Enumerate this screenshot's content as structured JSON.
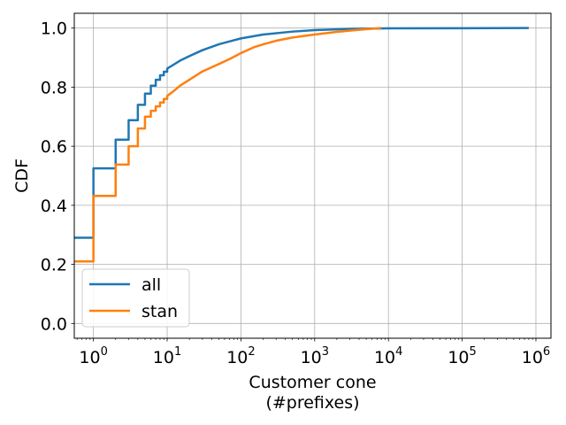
{
  "chart_data": {
    "type": "line",
    "xlabel_lines": [
      "Customer cone",
      "(#prefixes)"
    ],
    "ylabel": "CDF",
    "xscale": "log",
    "xlim": [
      0.55,
      1600000
    ],
    "ylim": [
      -0.05,
      1.05
    ],
    "grid": true,
    "legend_position": "lower-left",
    "x_ticks": [
      {
        "base": "10",
        "exp": "0",
        "value": 1
      },
      {
        "base": "10",
        "exp": "1",
        "value": 10
      },
      {
        "base": "10",
        "exp": "2",
        "value": 100
      },
      {
        "base": "10",
        "exp": "3",
        "value": 1000
      },
      {
        "base": "10",
        "exp": "4",
        "value": 10000
      },
      {
        "base": "10",
        "exp": "5",
        "value": 100000
      },
      {
        "base": "10",
        "exp": "6",
        "value": 1000000
      }
    ],
    "y_ticks": [
      {
        "label": "0.0",
        "value": 0.0
      },
      {
        "label": "0.2",
        "value": 0.2
      },
      {
        "label": "0.4",
        "value": 0.4
      },
      {
        "label": "0.6",
        "value": 0.6
      },
      {
        "label": "0.8",
        "value": 0.8
      },
      {
        "label": "1.0",
        "value": 1.0
      }
    ],
    "series": [
      {
        "name": "all",
        "color": "#1f77b4",
        "points": [
          [
            0.55,
            0.29
          ],
          [
            1,
            0.29
          ],
          [
            1,
            0.525
          ],
          [
            2,
            0.525
          ],
          [
            2,
            0.622
          ],
          [
            3,
            0.622
          ],
          [
            3,
            0.688
          ],
          [
            4,
            0.688
          ],
          [
            4,
            0.74
          ],
          [
            5,
            0.74
          ],
          [
            5,
            0.778
          ],
          [
            6,
            0.778
          ],
          [
            6,
            0.805
          ],
          [
            7,
            0.805
          ],
          [
            7,
            0.825
          ],
          [
            8,
            0.825
          ],
          [
            8,
            0.84
          ],
          [
            9,
            0.84
          ],
          [
            9,
            0.852
          ],
          [
            10,
            0.852
          ],
          [
            10,
            0.863
          ],
          [
            12,
            0.875
          ],
          [
            15,
            0.89
          ],
          [
            20,
            0.905
          ],
          [
            30,
            0.925
          ],
          [
            50,
            0.945
          ],
          [
            100,
            0.965
          ],
          [
            200,
            0.978
          ],
          [
            500,
            0.988
          ],
          [
            1000,
            0.993
          ],
          [
            3000,
            0.997
          ],
          [
            10000,
            0.999
          ],
          [
            100000,
            0.9995
          ],
          [
            800000,
            1.0
          ]
        ]
      },
      {
        "name": "stan",
        "color": "#ff7f0e",
        "points": [
          [
            0.55,
            0.21
          ],
          [
            1,
            0.21
          ],
          [
            1,
            0.432
          ],
          [
            2,
            0.432
          ],
          [
            2,
            0.538
          ],
          [
            3,
            0.538
          ],
          [
            3,
            0.6
          ],
          [
            4,
            0.6
          ],
          [
            4,
            0.66
          ],
          [
            5,
            0.66
          ],
          [
            5,
            0.7
          ],
          [
            6,
            0.7
          ],
          [
            6,
            0.72
          ],
          [
            7,
            0.72
          ],
          [
            7,
            0.735
          ],
          [
            8,
            0.735
          ],
          [
            8,
            0.748
          ],
          [
            9,
            0.748
          ],
          [
            9,
            0.76
          ],
          [
            10,
            0.76
          ],
          [
            10,
            0.77
          ],
          [
            12,
            0.785
          ],
          [
            15,
            0.805
          ],
          [
            20,
            0.825
          ],
          [
            30,
            0.853
          ],
          [
            50,
            0.878
          ],
          [
            70,
            0.895
          ],
          [
            100,
            0.915
          ],
          [
            150,
            0.935
          ],
          [
            200,
            0.945
          ],
          [
            300,
            0.957
          ],
          [
            500,
            0.968
          ],
          [
            1000,
            0.978
          ],
          [
            2000,
            0.987
          ],
          [
            4000,
            0.994
          ],
          [
            8000,
            1.0
          ]
        ]
      }
    ]
  }
}
